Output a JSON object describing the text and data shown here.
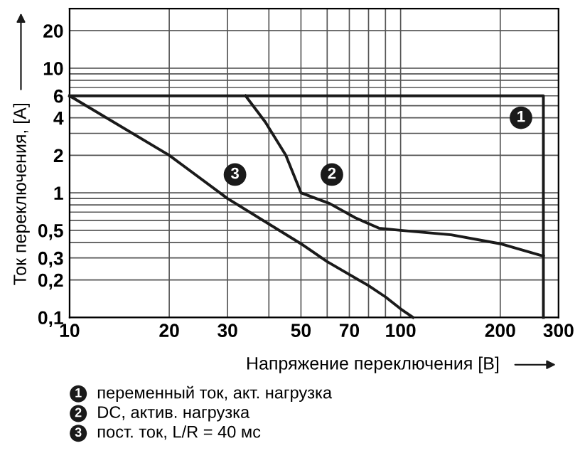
{
  "chart_data": {
    "type": "line",
    "xlabel": "Напряжение переключения [В]",
    "ylabel": "Ток переключения, [A]",
    "log": "xy",
    "xlim": [
      10,
      300
    ],
    "ylim": [
      0.1,
      30
    ],
    "xticks": [
      10,
      20,
      30,
      {
        "value": 40,
        "label": null
      },
      50,
      {
        "value": 60,
        "label": null
      },
      70,
      {
        "value": 80,
        "label": null
      },
      {
        "value": 90,
        "label": null
      },
      100,
      200,
      300
    ],
    "yticks": [
      {
        "value": 0.1,
        "label": "0,1"
      },
      {
        "value": 0.2,
        "label": "0,2"
      },
      {
        "value": 0.3,
        "label": "0,3"
      },
      {
        "value": 0.4,
        "label": null
      },
      {
        "value": 0.5,
        "label": "0,5"
      },
      {
        "value": 0.6,
        "label": null
      },
      {
        "value": 0.7,
        "label": null
      },
      {
        "value": 0.8,
        "label": null
      },
      {
        "value": 0.9,
        "label": null
      },
      1,
      2,
      {
        "value": 3,
        "label": null
      },
      4,
      {
        "value": 5,
        "label": null
      },
      6,
      {
        "value": 7,
        "label": null
      },
      {
        "value": 8,
        "label": null
      },
      {
        "value": 9,
        "label": null
      },
      10,
      20
    ],
    "grid": true,
    "legend": "bottom",
    "series": [
      {
        "name": "переменный ток, акт. нагрузка",
        "color": "#1a1a1a",
        "x": [
          10,
          270,
          270
        ],
        "values": [
          6,
          6,
          0.1
        ]
      },
      {
        "name": "DC, актив. нагрузка",
        "color": "#1a1a1a",
        "x": [
          34,
          39,
          45,
          50,
          61,
          73,
          86,
          100,
          142,
          200,
          270
        ],
        "values": [
          6,
          3.7,
          2.0,
          1.0,
          0.82,
          0.63,
          0.52,
          0.5,
          0.46,
          0.39,
          0.31
        ]
      },
      {
        "name": "пост. ток, L/R = 40 мс",
        "color": "#1a1a1a",
        "x": [
          10,
          20,
          30,
          50,
          60,
          80,
          90,
          100,
          109
        ],
        "values": [
          6,
          2.0,
          0.9,
          0.39,
          0.28,
          0.18,
          0.146,
          0.117,
          0.1
        ]
      }
    ],
    "annotations": [
      {
        "text": "1",
        "x": 231,
        "y": 4.0
      },
      {
        "text": "2",
        "x": 62,
        "y": 1.4
      },
      {
        "text": "3",
        "x": 31.6,
        "y": 1.4
      }
    ]
  }
}
